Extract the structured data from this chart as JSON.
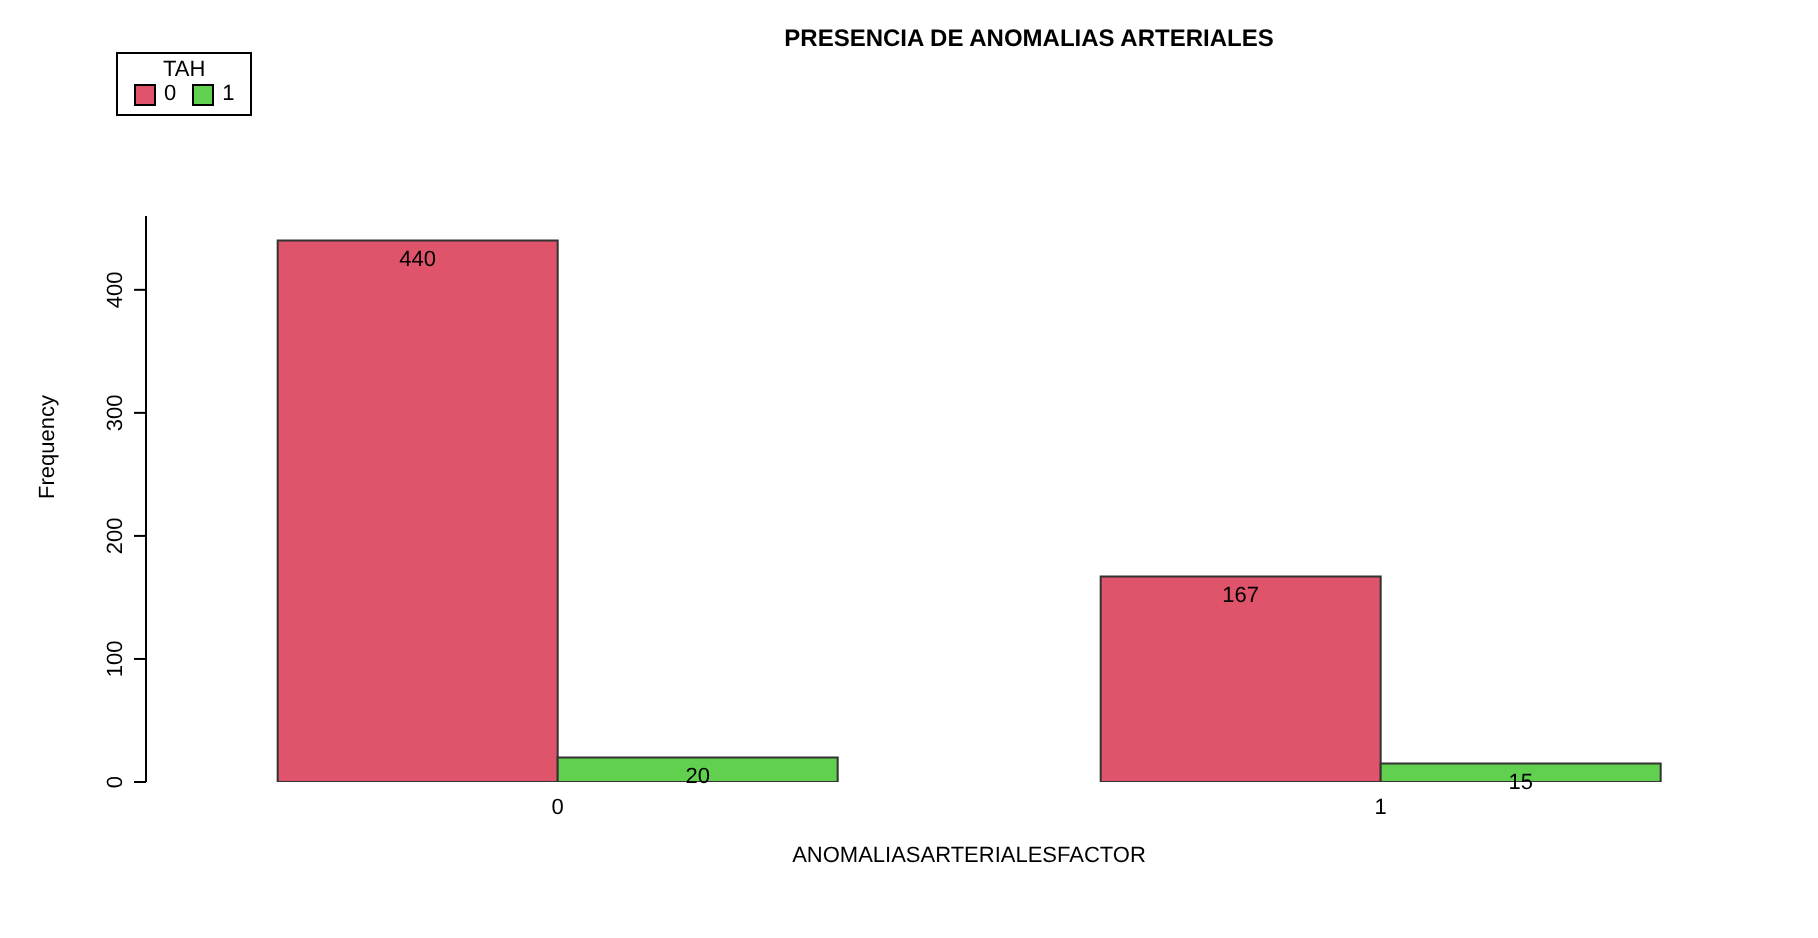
{
  "chart_data": {
    "type": "bar",
    "title": "PRESENCIA DE ANOMALIAS ARTERIALES",
    "xlabel": "ANOMALIASARTERIALESFACTOR",
    "ylabel": "Frequency",
    "legend_title": "TAH",
    "categories": [
      "0",
      "1"
    ],
    "series": [
      {
        "name": "0",
        "color": "#df536b",
        "values": [
          440,
          167
        ]
      },
      {
        "name": "1",
        "color": "#61d04f",
        "values": [
          20,
          15
        ]
      }
    ],
    "ylim": [
      0,
      460
    ],
    "yticks": [
      0,
      100,
      200,
      300,
      400
    ],
    "data_labels": true,
    "legend": "top left",
    "grid": false
  }
}
